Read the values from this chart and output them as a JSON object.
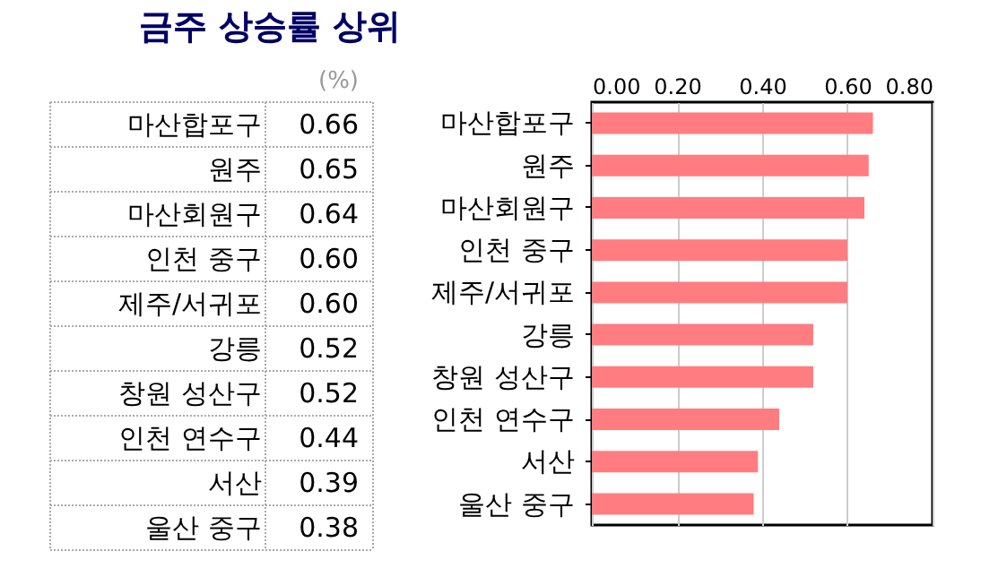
{
  "chart_data": {
    "type": "bar",
    "orientation": "horizontal",
    "title": "금주 상승률 상위",
    "annotations": [
      "(%)"
    ],
    "categories": [
      "마산합포구",
      "원주",
      "마산회원구",
      "인천 중구",
      "제주/서귀포",
      "강릉",
      "창원 성산구",
      "인천 연수구",
      "서산",
      "울산 중구"
    ],
    "values": [
      0.66,
      0.65,
      0.64,
      0.6,
      0.6,
      0.52,
      0.52,
      0.44,
      0.39,
      0.38
    ],
    "value_labels": [
      "0.66",
      "0.65",
      "0.64",
      "0.60",
      "0.60",
      "0.52",
      "0.52",
      "0.44",
      "0.39",
      "0.38"
    ],
    "color": "#ff7c80",
    "xlim": [
      0,
      0.8
    ],
    "xticks": [
      {
        "value": 0,
        "label": "0.00"
      },
      {
        "value": 0.2,
        "label": "0.20"
      },
      {
        "value": 0.4,
        "label": "0.40"
      },
      {
        "value": 0.6,
        "label": "0.60"
      },
      {
        "value": 0.8,
        "label": "0.80"
      }
    ],
    "grid": "x"
  }
}
